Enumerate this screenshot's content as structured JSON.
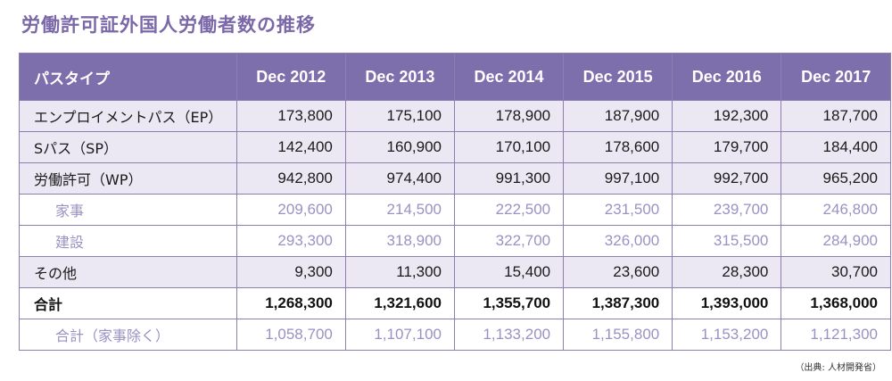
{
  "title": "労働許可証外国人労働者数の推移",
  "table": {
    "header": [
      "パスタイプ",
      "Dec 2012",
      "Dec 2013",
      "Dec 2014",
      "Dec 2015",
      "Dec 2016",
      "Dec 2017"
    ],
    "rows": [
      {
        "type": "main",
        "label": "エンプロイメントパス（EP）",
        "values": [
          "173,800",
          "175,100",
          "178,900",
          "187,900",
          "192,300",
          "187,700"
        ]
      },
      {
        "type": "main",
        "label": "Sパス（SP）",
        "values": [
          "142,400",
          "160,900",
          "170,100",
          "178,600",
          "179,700",
          "184,400"
        ]
      },
      {
        "type": "main",
        "label": "労働許可（WP）",
        "values": [
          "942,800",
          "974,400",
          "991,300",
          "997,100",
          "992,700",
          "965,200"
        ]
      },
      {
        "type": "sub",
        "label": "家事",
        "values": [
          "209,600",
          "214,500",
          "222,500",
          "231,500",
          "239,700",
          "246,800"
        ]
      },
      {
        "type": "sub",
        "label": "建設",
        "values": [
          "293,300",
          "318,900",
          "322,700",
          "326,000",
          "315,500",
          "284,900"
        ]
      },
      {
        "type": "main",
        "label": "その他",
        "values": [
          "9,300",
          "11,300",
          "15,400",
          "23,600",
          "28,300",
          "30,700"
        ]
      },
      {
        "type": "total",
        "label": "合計",
        "values": [
          "1,268,300",
          "1,321,600",
          "1,355,700",
          "1,387,300",
          "1,393,000",
          "1,368,000"
        ]
      },
      {
        "type": "sub-total",
        "label": "合計（家事除く）",
        "values": [
          "1,058,700",
          "1,107,100",
          "1,133,200",
          "1,155,800",
          "1,153,200",
          "1,121,300"
        ]
      }
    ]
  },
  "source": "（出典: 人材開発省）",
  "colors": {
    "header_bg": "#7d6fac",
    "main_row_bg": "#ebe8f3",
    "sub_text": "#9b91c3",
    "title": "#7b68a8"
  }
}
